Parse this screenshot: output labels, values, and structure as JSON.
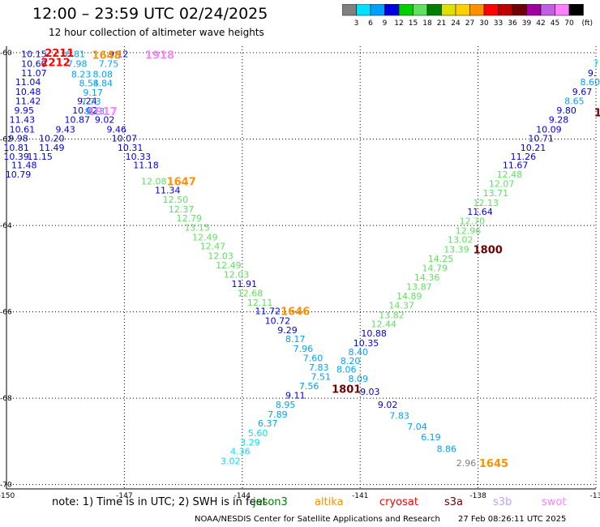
{
  "header": {
    "title": "12:00 – 23:59 UTC 02/24/2025",
    "subtitle": "12 hour collection of altimeter wave heights"
  },
  "colorbar": {
    "unit": "(ft)",
    "ticks": [
      "3",
      "6",
      "9",
      "12",
      "15",
      "18",
      "21",
      "24",
      "27",
      "30",
      "33",
      "36",
      "39",
      "42",
      "45",
      "70"
    ],
    "colors": [
      "#808080",
      "#00e0ff",
      "#00a0ff",
      "#0000e0",
      "#00d000",
      "#60e060",
      "#008000",
      "#e0e000",
      "#ffd000",
      "#ff9000",
      "#ff0000",
      "#c00000",
      "#700000",
      "#a000a0",
      "#c060e0",
      "#ff80ff",
      "#000000"
    ]
  },
  "map": {
    "lon_min": -150,
    "lon_max": -135,
    "lat_min": -70.1,
    "lat_max": -59.85,
    "lon_ticks": [
      -150,
      -147,
      -144,
      -141,
      -138,
      -135
    ],
    "lat_ticks": [
      -60,
      -62,
      -64,
      -66,
      -68,
      -70
    ],
    "lon_labels": [
      "-150",
      "-147",
      "-144",
      "-141",
      "-138",
      "-13"
    ],
    "lat_labels": [
      "-60",
      "-62",
      "-64",
      "-66",
      "-68",
      "-70"
    ]
  },
  "chart_data": {
    "type": "scatter",
    "x_units": "degrees longitude",
    "y_units": "degrees latitude",
    "points": [
      {
        "lon": -149.3,
        "lat": -60.03,
        "label": "10.15",
        "color": "#0000e0"
      },
      {
        "lon": -149.3,
        "lat": -60.25,
        "label": "10.60",
        "color": "#0000e0"
      },
      {
        "lon": -149.3,
        "lat": -60.47,
        "label": "11.07",
        "color": "#0000e0"
      },
      {
        "lon": -149.45,
        "lat": -60.68,
        "label": "11.04",
        "color": "#0000e0"
      },
      {
        "lon": -149.45,
        "lat": -60.9,
        "label": "10.48",
        "color": "#0000e0"
      },
      {
        "lon": -149.45,
        "lat": -61.12,
        "label": "11.42",
        "color": "#0000e0"
      },
      {
        "lon": -149.55,
        "lat": -61.33,
        "label": "9.95",
        "color": "#0000e0"
      },
      {
        "lon": -149.6,
        "lat": -61.55,
        "label": "11.43",
        "color": "#0000e0"
      },
      {
        "lon": -149.6,
        "lat": -61.77,
        "label": "10.61",
        "color": "#0000e0"
      },
      {
        "lon": -149.7,
        "lat": -61.98,
        "label": "9.98",
        "color": "#0000e0"
      },
      {
        "lon": -149.75,
        "lat": -62.2,
        "label": "10.81",
        "color": "#0000e0"
      },
      {
        "lon": -149.75,
        "lat": -62.4,
        "label": "10.39",
        "color": "#0000e0"
      },
      {
        "lon": -149.55,
        "lat": -62.6,
        "label": "11.48",
        "color": "#0000e0"
      },
      {
        "lon": -149.7,
        "lat": -62.82,
        "label": "10.79",
        "color": "#0000e0"
      },
      {
        "lon": -149.15,
        "lat": -62.4,
        "label": "11.15",
        "color": "#0000e0"
      },
      {
        "lon": -148.85,
        "lat": -62.2,
        "label": "11.49",
        "color": "#0000e0"
      },
      {
        "lon": -148.85,
        "lat": -61.98,
        "label": "10.20",
        "color": "#0000e0"
      },
      {
        "lon": -148.5,
        "lat": -61.77,
        "label": "9.43",
        "color": "#0000e0"
      },
      {
        "lon": -148.2,
        "lat": -61.55,
        "label": "10.87",
        "color": "#0000e0"
      },
      {
        "lon": -148.0,
        "lat": -61.33,
        "label": "10.02",
        "color": "#0000e0"
      },
      {
        "lon": -147.95,
        "lat": -61.12,
        "label": "9.24",
        "color": "#0000e0"
      },
      {
        "lon": -147.5,
        "lat": -61.55,
        "label": "9.02",
        "color": "#0000e0"
      },
      {
        "lon": -147.2,
        "lat": -61.77,
        "label": "9.46",
        "color": "#0000e0"
      },
      {
        "lon": -147.0,
        "lat": -61.98,
        "label": "10.07",
        "color": "#0000e0"
      },
      {
        "lon": -146.85,
        "lat": -62.2,
        "label": "10.31",
        "color": "#0000e0"
      },
      {
        "lon": -146.65,
        "lat": -62.4,
        "label": "10.33",
        "color": "#0000e0"
      },
      {
        "lon": -146.45,
        "lat": -62.6,
        "label": "11.18",
        "color": "#0000e0"
      },
      {
        "lon": -147.15,
        "lat": -60.03,
        "label": "9.12",
        "color": "#0000e0"
      },
      {
        "lon": -148.25,
        "lat": -60.03,
        "label": "6.81",
        "color": "#00a0ff"
      },
      {
        "lon": -148.2,
        "lat": -60.25,
        "label": "7.98",
        "color": "#00a0ff"
      },
      {
        "lon": -148.1,
        "lat": -60.5,
        "label": "8.23",
        "color": "#00a0ff"
      },
      {
        "lon": -147.9,
        "lat": -60.7,
        "label": "8.54",
        "color": "#00a0ff"
      },
      {
        "lon": -147.8,
        "lat": -60.92,
        "label": "9.17",
        "color": "#00a0ff"
      },
      {
        "lon": -147.85,
        "lat": -61.13,
        "label": "7.73",
        "color": "#00a0ff"
      },
      {
        "lon": -147.75,
        "lat": -61.35,
        "label": "9.13",
        "color": "#00a0ff"
      },
      {
        "lon": -147.55,
        "lat": -60.7,
        "label": "8.84",
        "color": "#00a0ff"
      },
      {
        "lon": -147.55,
        "lat": -60.5,
        "label": "8.08",
        "color": "#00a0ff"
      },
      {
        "lon": -147.4,
        "lat": -60.25,
        "label": "7.75",
        "color": "#00a0ff"
      },
      {
        "lon": -146.25,
        "lat": -62.98,
        "label": "12.08",
        "color": "#60e060"
      },
      {
        "lon": -145.9,
        "lat": -63.18,
        "label": "11.34",
        "color": "#0000e0"
      },
      {
        "lon": -145.7,
        "lat": -63.4,
        "label": "12.50",
        "color": "#60e060"
      },
      {
        "lon": -145.55,
        "lat": -63.62,
        "label": "12.37",
        "color": "#60e060"
      },
      {
        "lon": -145.35,
        "lat": -63.83,
        "label": "12.79",
        "color": "#60e060"
      },
      {
        "lon": -145.15,
        "lat": -64.05,
        "label": "13.15",
        "color": "#60e060"
      },
      {
        "lon": -144.95,
        "lat": -64.27,
        "label": "12.49",
        "color": "#60e060"
      },
      {
        "lon": -144.75,
        "lat": -64.48,
        "label": "12.47",
        "color": "#60e060"
      },
      {
        "lon": -144.55,
        "lat": -64.7,
        "label": "12.03",
        "color": "#60e060"
      },
      {
        "lon": -144.35,
        "lat": -64.92,
        "label": "12.49",
        "color": "#60e060"
      },
      {
        "lon": -144.15,
        "lat": -65.13,
        "label": "12.03",
        "color": "#60e060"
      },
      {
        "lon": -143.95,
        "lat": -65.35,
        "label": "11.91",
        "color": "#0000e0"
      },
      {
        "lon": -143.8,
        "lat": -65.57,
        "label": "12.68",
        "color": "#60e060"
      },
      {
        "lon": -143.55,
        "lat": -65.78,
        "label": "12.11",
        "color": "#60e060"
      },
      {
        "lon": -143.35,
        "lat": -65.98,
        "label": "11.72",
        "color": "#0000e0"
      },
      {
        "lon": -143.1,
        "lat": -66.2,
        "label": "10.72",
        "color": "#0000e0"
      },
      {
        "lon": -142.85,
        "lat": -66.42,
        "label": "9.29",
        "color": "#0000e0"
      },
      {
        "lon": -142.65,
        "lat": -66.63,
        "label": "8.17",
        "color": "#00a0ff"
      },
      {
        "lon": -142.45,
        "lat": -66.85,
        "label": "7.96",
        "color": "#00a0ff"
      },
      {
        "lon": -142.2,
        "lat": -67.07,
        "label": "7.60",
        "color": "#00a0ff"
      },
      {
        "lon": -142.05,
        "lat": -67.28,
        "label": "7.83",
        "color": "#00a0ff"
      },
      {
        "lon": -142.0,
        "lat": -67.5,
        "label": "7.51",
        "color": "#00a0ff"
      },
      {
        "lon": -142.3,
        "lat": -67.72,
        "label": "7.56",
        "color": "#00a0ff"
      },
      {
        "lon": -142.65,
        "lat": -67.93,
        "label": "9.11",
        "color": "#0000e0"
      },
      {
        "lon": -142.9,
        "lat": -68.15,
        "label": "8.95",
        "color": "#00a0ff"
      },
      {
        "lon": -143.1,
        "lat": -68.37,
        "label": "7.89",
        "color": "#00a0ff"
      },
      {
        "lon": -143.35,
        "lat": -68.58,
        "label": "6.37",
        "color": "#00a0ff"
      },
      {
        "lon": -143.6,
        "lat": -68.8,
        "label": "5.60",
        "color": "#00e0ff"
      },
      {
        "lon": -143.8,
        "lat": -69.02,
        "label": "3.29",
        "color": "#00e0ff"
      },
      {
        "lon": -144.05,
        "lat": -69.23,
        "label": "4.36",
        "color": "#00e0ff"
      },
      {
        "lon": -144.3,
        "lat": -69.45,
        "label": "3.02",
        "color": "#00e0ff"
      },
      {
        "lon": -135.0,
        "lat": -60.25,
        "label": "7",
        "color": "#00e0ff"
      },
      {
        "lon": -135.1,
        "lat": -60.47,
        "label": "9.",
        "color": "#0000e0"
      },
      {
        "lon": -135.15,
        "lat": -60.68,
        "label": "8.60",
        "color": "#00a0ff"
      },
      {
        "lon": -135.35,
        "lat": -60.9,
        "label": "9.67",
        "color": "#0000e0"
      },
      {
        "lon": -135.55,
        "lat": -61.12,
        "label": "8.65",
        "color": "#00a0ff"
      },
      {
        "lon": -135.75,
        "lat": -61.33,
        "label": "9.80",
        "color": "#0000e0"
      },
      {
        "lon": -135.95,
        "lat": -61.55,
        "label": "9.28",
        "color": "#0000e0"
      },
      {
        "lon": -136.2,
        "lat": -61.77,
        "label": "10.09",
        "color": "#0000e0"
      },
      {
        "lon": -136.4,
        "lat": -61.98,
        "label": "10.71",
        "color": "#0000e0"
      },
      {
        "lon": -136.6,
        "lat": -62.2,
        "label": "10.21",
        "color": "#0000e0"
      },
      {
        "lon": -136.85,
        "lat": -62.4,
        "label": "11.26",
        "color": "#0000e0"
      },
      {
        "lon": -137.05,
        "lat": -62.6,
        "label": "11.67",
        "color": "#0000e0"
      },
      {
        "lon": -137.2,
        "lat": -62.82,
        "label": "12.48",
        "color": "#60e060"
      },
      {
        "lon": -137.4,
        "lat": -63.03,
        "label": "12.07",
        "color": "#60e060"
      },
      {
        "lon": -137.55,
        "lat": -63.25,
        "label": "13.71",
        "color": "#60e060"
      },
      {
        "lon": -137.8,
        "lat": -63.47,
        "label": "12.13",
        "color": "#60e060"
      },
      {
        "lon": -137.95,
        "lat": -63.68,
        "label": "11.64",
        "color": "#0000e0"
      },
      {
        "lon": -138.15,
        "lat": -63.9,
        "label": "12.70",
        "color": "#60e060"
      },
      {
        "lon": -138.25,
        "lat": -64.12,
        "label": "12.96",
        "color": "#60e060"
      },
      {
        "lon": -138.45,
        "lat": -64.33,
        "label": "13.02",
        "color": "#60e060"
      },
      {
        "lon": -138.55,
        "lat": -64.55,
        "label": "13.39",
        "color": "#60e060"
      },
      {
        "lon": -138.95,
        "lat": -64.77,
        "label": "14.25",
        "color": "#60e060"
      },
      {
        "lon": -139.1,
        "lat": -64.98,
        "label": "14.79",
        "color": "#60e060"
      },
      {
        "lon": -139.3,
        "lat": -65.2,
        "label": "14.36",
        "color": "#60e060"
      },
      {
        "lon": -139.5,
        "lat": -65.42,
        "label": "13.87",
        "color": "#60e060"
      },
      {
        "lon": -139.75,
        "lat": -65.63,
        "label": "14.89",
        "color": "#60e060"
      },
      {
        "lon": -139.95,
        "lat": -65.85,
        "label": "14.37",
        "color": "#60e060"
      },
      {
        "lon": -140.2,
        "lat": -66.07,
        "label": "13.82",
        "color": "#60e060"
      },
      {
        "lon": -140.4,
        "lat": -66.28,
        "label": "12.44",
        "color": "#60e060"
      },
      {
        "lon": -140.65,
        "lat": -66.5,
        "label": "10.88",
        "color": "#0000e0"
      },
      {
        "lon": -140.85,
        "lat": -66.72,
        "label": "10.35",
        "color": "#0000e0"
      },
      {
        "lon": -141.05,
        "lat": -66.93,
        "label": "8.40",
        "color": "#00a0ff"
      },
      {
        "lon": -141.25,
        "lat": -67.13,
        "label": "8.20",
        "color": "#00a0ff"
      },
      {
        "lon": -141.35,
        "lat": -67.33,
        "label": "8.06",
        "color": "#00a0ff"
      },
      {
        "lon": -141.05,
        "lat": -67.55,
        "label": "8.09",
        "color": "#00a0ff"
      },
      {
        "lon": -140.75,
        "lat": -67.85,
        "label": "9.03",
        "color": "#0000e0"
      },
      {
        "lon": -140.3,
        "lat": -68.15,
        "label": "9.02",
        "color": "#0000e0"
      },
      {
        "lon": -140.0,
        "lat": -68.4,
        "label": "7.83",
        "color": "#00a0ff"
      },
      {
        "lon": -139.55,
        "lat": -68.65,
        "label": "7.04",
        "color": "#00a0ff"
      },
      {
        "lon": -139.2,
        "lat": -68.9,
        "label": "6.19",
        "color": "#00a0ff"
      },
      {
        "lon": -138.8,
        "lat": -69.17,
        "label": "8.86",
        "color": "#00a0ff"
      },
      {
        "lon": -138.3,
        "lat": -69.5,
        "label": "2.96",
        "color": "#808080"
      }
    ],
    "pass_times": [
      {
        "lon": -148.65,
        "lat": -60.0,
        "label": "2211",
        "color": "#ff0000"
      },
      {
        "lon": -148.75,
        "lat": -60.22,
        "label": "2212",
        "color": "#ff0000"
      },
      {
        "lon": -147.45,
        "lat": -60.05,
        "label": "1648",
        "color": "#ff9000"
      },
      {
        "lon": -146.1,
        "lat": -60.05,
        "label": "1918",
        "color": "#ff80ff"
      },
      {
        "lon": -147.55,
        "lat": -61.35,
        "label": "1917",
        "color": "#ff80ff"
      },
      {
        "lon": -145.55,
        "lat": -62.98,
        "label": "1647",
        "color": "#ff9000"
      },
      {
        "lon": -142.65,
        "lat": -65.98,
        "label": "1646",
        "color": "#ff9000"
      },
      {
        "lon": -141.35,
        "lat": -67.78,
        "label": "1801",
        "color": "#700000"
      },
      {
        "lon": -137.75,
        "lat": -64.55,
        "label": "1800",
        "color": "#700000"
      },
      {
        "lon": -137.6,
        "lat": -69.5,
        "label": "1645",
        "color": "#ff9000"
      },
      {
        "lon": -134.95,
        "lat": -61.38,
        "label": "1",
        "color": "#700000"
      }
    ]
  },
  "footer": {
    "note": "note:  1) Time is in UTC; 2) SWH is in feet",
    "missions": [
      {
        "name": "jason3",
        "color": "#008000"
      },
      {
        "name": "altika",
        "color": "#ff9000"
      },
      {
        "name": "cryosat",
        "color": "#ff0000"
      },
      {
        "name": "s3a",
        "color": "#700000"
      },
      {
        "name": "s3b",
        "color": "#c0a0ff"
      },
      {
        "name": "swot",
        "color": "#ff80ff"
      }
    ],
    "credit": "NOAA/NESDIS Center for Satellite Applications and Research",
    "timestamp": "27 Feb 08:26:11 UTC 2025"
  }
}
